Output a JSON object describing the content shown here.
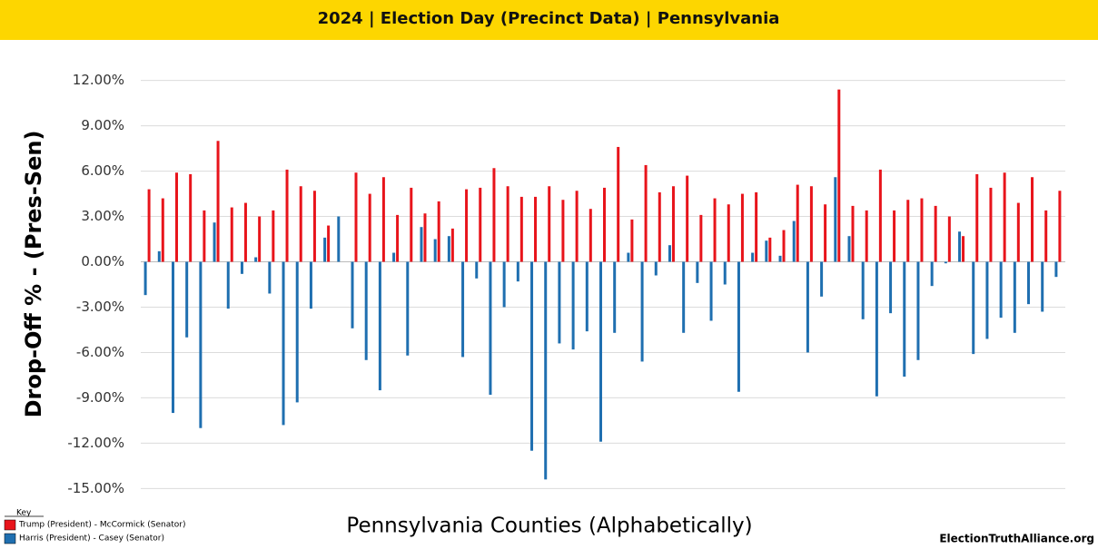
{
  "header": {
    "title": "2024 | Election Day (Precinct Data) | Pennsylvania"
  },
  "chart_data": {
    "type": "bar",
    "x_label": "Pennsylvania Counties (Alphabetically)",
    "y_label": "Drop-Off % - (Pres-Sen)",
    "categories": [
      null,
      null,
      null,
      null,
      null,
      null,
      null,
      null,
      null,
      null,
      null,
      null,
      null,
      null,
      null,
      null,
      null,
      null,
      null,
      null,
      null,
      null,
      null,
      null,
      null,
      null,
      null,
      null,
      null,
      null,
      null,
      null,
      null,
      null,
      null,
      null,
      null,
      null,
      null,
      null,
      null,
      null,
      null,
      null,
      null,
      null,
      null,
      null,
      null,
      null,
      null,
      null,
      null,
      null,
      null,
      null,
      null,
      null,
      null,
      null,
      null,
      null,
      null,
      null,
      null,
      null,
      null
    ],
    "series": [
      {
        "name": "Trump (President) - McCormick (Senator)",
        "color": "#e8141b",
        "values": [
          4.8,
          4.2,
          5.9,
          5.8,
          3.4,
          8.0,
          3.6,
          3.9,
          3.0,
          3.4,
          6.1,
          5.0,
          4.7,
          2.4,
          0,
          5.9,
          4.5,
          5.6,
          3.1,
          4.9,
          3.2,
          4.0,
          2.2,
          4.8,
          4.9,
          6.2,
          5.0,
          4.3,
          4.3,
          5.0,
          4.1,
          4.7,
          3.5,
          4.9,
          7.6,
          2.8,
          6.4,
          4.6,
          5.0,
          5.7,
          3.1,
          4.2,
          3.8,
          4.5,
          4.6,
          1.6,
          2.1,
          5.1,
          5.0,
          3.8,
          11.4,
          3.7,
          3.4,
          6.1,
          3.4,
          4.1,
          4.2,
          3.7,
          3.0,
          1.7,
          5.8,
          4.9,
          5.9,
          3.9,
          5.6,
          3.4,
          4.7
        ]
      },
      {
        "name": "Harris (President) - Casey (Senator)",
        "color": "#1f6fb0",
        "values": [
          -2.2,
          0.7,
          -10.0,
          -5.0,
          -11.0,
          2.6,
          -3.1,
          -0.8,
          0.3,
          -2.1,
          -10.8,
          -9.3,
          -3.1,
          1.6,
          3.0,
          -4.4,
          -6.5,
          -8.5,
          0.6,
          -6.2,
          2.3,
          1.5,
          1.7,
          -6.3,
          -1.1,
          -8.8,
          -3.0,
          -1.3,
          -12.5,
          -14.4,
          -5.4,
          -5.8,
          -4.6,
          -11.9,
          -4.7,
          0.6,
          -6.6,
          -0.9,
          1.1,
          -4.7,
          -1.4,
          -3.9,
          -1.5,
          -8.6,
          0.6,
          1.4,
          0.4,
          2.7,
          -6.0,
          -2.3,
          5.6,
          1.7,
          -3.8,
          -8.9,
          -3.4,
          -7.6,
          -6.5,
          -1.6,
          -0.1,
          2.0,
          -6.1,
          -5.1,
          -3.7,
          -4.7,
          -2.8,
          -3.3,
          -1.0
        ]
      }
    ],
    "ylim": [
      -16,
      13
    ],
    "yticks": [
      {
        "value": -15,
        "label": "-15.00%"
      },
      {
        "value": -12,
        "label": "-12.00%"
      },
      {
        "value": -9,
        "label": "-9.00%"
      },
      {
        "value": -6,
        "label": "-6.00%"
      },
      {
        "value": -3,
        "label": "-3.00%"
      },
      {
        "value": 0,
        "label": "0.00%"
      },
      {
        "value": 3,
        "label": "3.00%"
      },
      {
        "value": 6,
        "label": "6.00%"
      },
      {
        "value": 9,
        "label": "9.00%"
      },
      {
        "value": 12,
        "label": "12.00%"
      }
    ],
    "grid": true,
    "legend_title": "Key",
    "legend": "bottom-left"
  },
  "footer": {
    "source": "ElectionTruthAlliance.org"
  }
}
